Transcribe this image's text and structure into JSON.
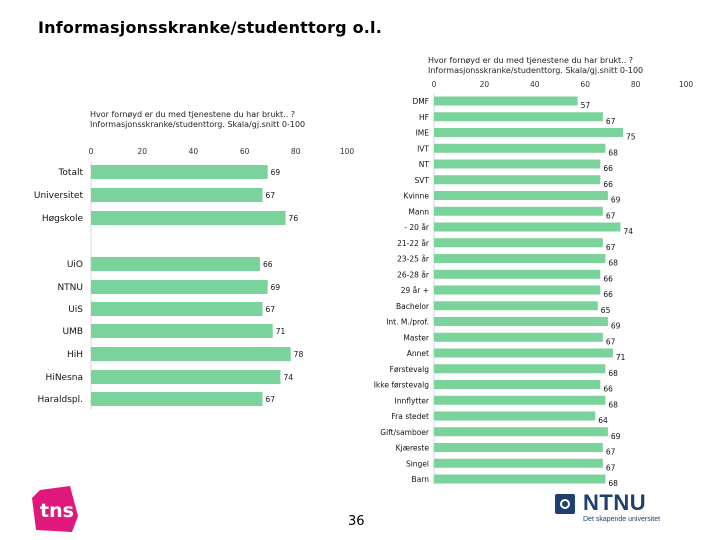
{
  "page": {
    "title": "Informasjonsskranke/studenttorg o.l.",
    "page_number": "36"
  },
  "logos": {
    "tns": "tns",
    "ntnu": "NTNU",
    "ntnu_tagline": "Det skapende universitet"
  },
  "chart_data": [
    {
      "type": "bar",
      "orientation": "horizontal",
      "title": "Hvor fornøyd er du med tjenestene du har brukt.. ?\nInformasjonsskranke/studenttorg. Skala/gj.snitt 0-100",
      "xlim": [
        0,
        100
      ],
      "ticks": [
        0,
        20,
        40,
        60,
        80,
        100
      ],
      "categories": [
        "Totalt",
        "Universitet",
        "Høgskole",
        "",
        "UiO",
        "NTNU",
        "UiS",
        "UMB",
        "HiH",
        "HiNesna",
        "Haraldspl."
      ],
      "values": [
        69,
        67,
        76,
        null,
        66,
        69,
        67,
        71,
        78,
        74,
        67
      ],
      "color": "#7ad39a"
    },
    {
      "type": "bar",
      "orientation": "horizontal",
      "title": "Hvor fornøyd er du med tjenestene du har brukt.. ?\nInformasjonsskranke/studenttorg. Skala/gj.snitt 0-100",
      "xlim": [
        0,
        100
      ],
      "ticks": [
        0,
        20,
        40,
        60,
        80,
        100
      ],
      "categories": [
        "DMF",
        "HF",
        "IME",
        "IVT",
        "NT",
        "SVT",
        "Kvinne",
        "Mann",
        "- 20 år",
        "21-22 år",
        "23-25 år",
        "26-28 år",
        "29 år +",
        "Bachelor",
        "Int. M./prof.",
        "Master",
        "Annet",
        "Førstevalg",
        "Ikke førstevalg",
        "Innflytter",
        "Fra stedet",
        "Gift/samboer",
        "Kjæreste",
        "Singel",
        "Barn"
      ],
      "values": [
        57,
        67,
        75,
        68,
        66,
        66,
        69,
        67,
        74,
        67,
        68,
        66,
        66,
        65,
        69,
        67,
        71,
        68,
        66,
        68,
        64,
        69,
        67,
        67,
        68
      ],
      "color": "#7ad39a"
    }
  ]
}
